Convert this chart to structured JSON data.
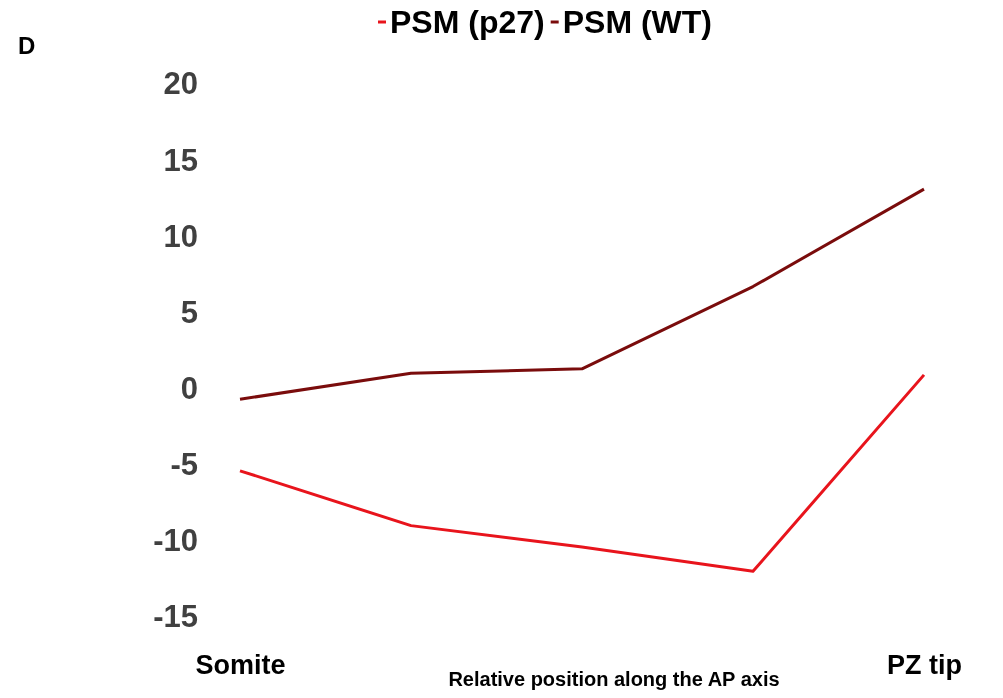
{
  "chart_data": {
    "type": "line",
    "xlabel": "Relative position along the AP axis",
    "annotations": [
      "D"
    ],
    "categories": [
      "Somite",
      null,
      null,
      null,
      "PZ tip"
    ],
    "series": [
      {
        "name": "PSM (p27)",
        "color": "#e8141c",
        "values": [
          -5.4,
          -9.0,
          -10.4,
          -12.0,
          0.9
        ]
      },
      {
        "name": "PSM (WT)",
        "color": "#7a0c0c",
        "values": [
          -0.7,
          1.0,
          1.3,
          6.7,
          13.1
        ]
      }
    ],
    "ylim": [
      -15,
      20
    ],
    "yticks": [
      -15,
      -10,
      -5,
      0,
      5,
      10,
      15,
      20
    ],
    "grid": false,
    "legend": "top",
    "marker": "none",
    "line_style": "solid"
  }
}
